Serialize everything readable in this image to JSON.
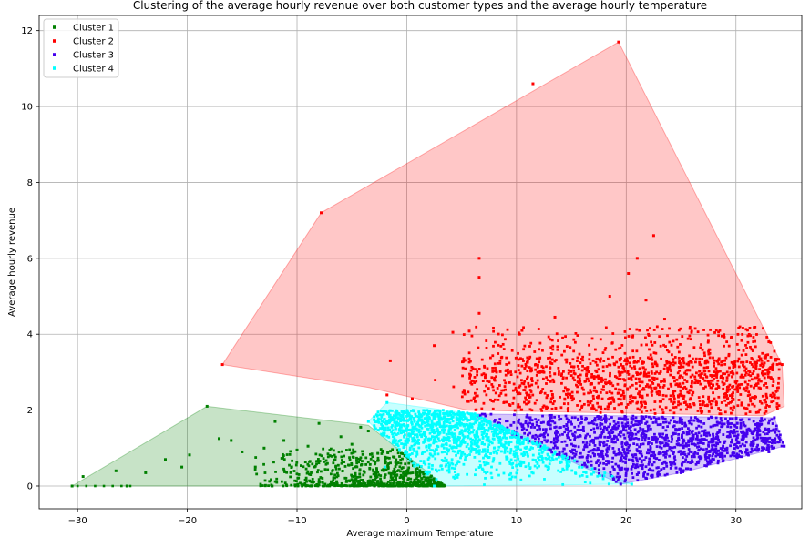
{
  "chart_data": {
    "type": "scatter",
    "title": "Clustering of the average hourly revenue over both customer types and the average hourly temperature",
    "xlabel": "Average maximum Temperature",
    "ylabel": "Average hourly revenue",
    "xlim": [
      -33.5,
      36
    ],
    "ylim": [
      -0.6,
      12.4
    ],
    "xticks": [
      -30,
      -20,
      -10,
      0,
      10,
      20,
      30
    ],
    "yticks": [
      0,
      2,
      4,
      6,
      8,
      10,
      12
    ],
    "grid": true,
    "legend_position": "top-left",
    "series": [
      {
        "name": "Cluster 1",
        "color": "#008000",
        "hull": [
          [
            -30.5,
            0
          ],
          [
            3.5,
            0
          ],
          [
            -3.5,
            1.6
          ],
          [
            -18.2,
            2.1
          ]
        ],
        "points": [
          [
            -30.5,
            0
          ],
          [
            -29.5,
            0.25
          ],
          [
            -26.5,
            0.4
          ],
          [
            -25.5,
            0
          ],
          [
            -23.8,
            0.35
          ],
          [
            -22,
            0.7
          ],
          [
            -20.5,
            0.5
          ],
          [
            -19.8,
            0.82
          ],
          [
            -18.2,
            2.1
          ],
          [
            -17.1,
            1.25
          ],
          [
            -16,
            1.2
          ],
          [
            -15,
            0.9
          ],
          [
            -13.8,
            0.5
          ],
          [
            -13,
            1.0
          ],
          [
            -12,
            1.7
          ],
          [
            -11.2,
            1.2
          ],
          [
            -10,
            0.95
          ],
          [
            -9,
            1.05
          ],
          [
            -8,
            1.65
          ],
          [
            -7,
            0.8
          ],
          [
            -6,
            1.3
          ],
          [
            -5,
            1.1
          ],
          [
            -4.2,
            1.55
          ],
          [
            -3.5,
            1.45
          ]
        ]
      },
      {
        "name": "Cluster 2",
        "color": "#ff0000",
        "hull": [
          [
            -16.8,
            3.2
          ],
          [
            -7.8,
            7.2
          ],
          [
            19.3,
            11.7
          ],
          [
            34.2,
            3.2
          ],
          [
            34.4,
            2.1
          ],
          [
            32.5,
            1.85
          ],
          [
            5.5,
            2.0
          ],
          [
            -3.5,
            2.6
          ]
        ],
        "points": [
          [
            -16.8,
            3.2
          ],
          [
            -7.8,
            7.2
          ],
          [
            11.5,
            10.6
          ],
          [
            19.3,
            11.7
          ],
          [
            22.5,
            6.6
          ],
          [
            21,
            6.0
          ],
          [
            6.6,
            6.0
          ],
          [
            6.6,
            5.5
          ],
          [
            20.2,
            5.6
          ],
          [
            18.5,
            5.0
          ],
          [
            21.8,
            4.9
          ],
          [
            6.6,
            4.55
          ],
          [
            23.5,
            4.4
          ],
          [
            13.5,
            4.45
          ],
          [
            10.5,
            4.1
          ],
          [
            4.2,
            4.05
          ],
          [
            2.5,
            3.7
          ],
          [
            -1.5,
            3.3
          ],
          [
            -1.8,
            2.4
          ],
          [
            0.5,
            2.3
          ],
          [
            33,
            3.8
          ],
          [
            34.2,
            3.2
          ]
        ]
      },
      {
        "name": "Cluster 3",
        "color": "#4400ee",
        "hull": [
          [
            5.5,
            1.9
          ],
          [
            33.5,
            1.8
          ],
          [
            34.4,
            1.05
          ],
          [
            25,
            0.35
          ],
          [
            19.5,
            0.05
          ]
        ],
        "points": [
          [
            6.5,
            1.85
          ],
          [
            8,
            1.7
          ],
          [
            9.5,
            1.6
          ],
          [
            33.5,
            1.8
          ],
          [
            34.4,
            1.05
          ],
          [
            33,
            0.9
          ],
          [
            25,
            0.35
          ],
          [
            19.5,
            0.05
          ],
          [
            21,
            0.3
          ]
        ]
      },
      {
        "name": "Cluster 4",
        "color": "#00ffff",
        "hull": [
          [
            -3.5,
            1.7
          ],
          [
            -1.8,
            2.2
          ],
          [
            6.2,
            1.9
          ],
          [
            20.5,
            0.05
          ],
          [
            2.5,
            0.0
          ]
        ],
        "points": [
          [
            -3.5,
            1.7
          ],
          [
            -1.8,
            2.2
          ],
          [
            6.2,
            1.9
          ],
          [
            20.5,
            0.05
          ],
          [
            2.5,
            0.0
          ],
          [
            -2,
            0.5
          ],
          [
            -1,
            1.2
          ]
        ]
      }
    ]
  }
}
